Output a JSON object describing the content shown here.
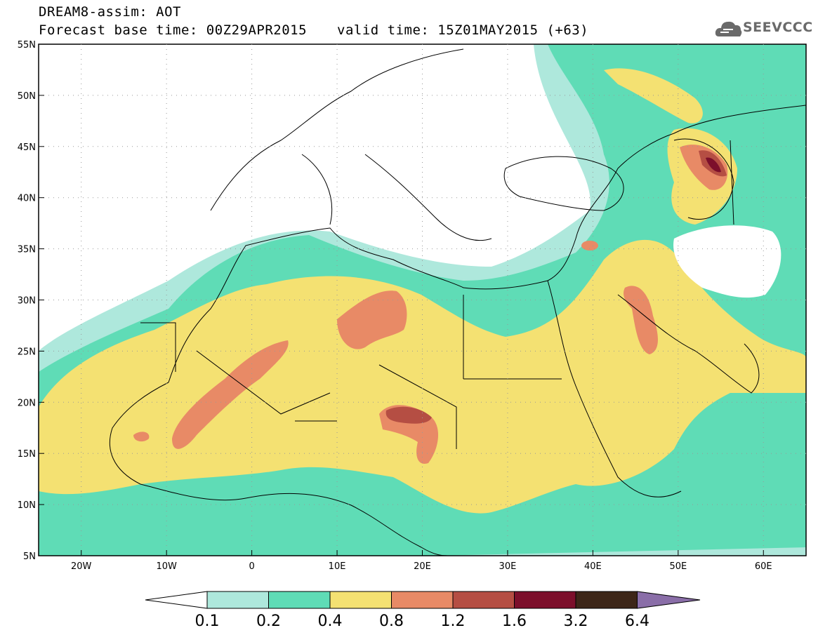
{
  "header": {
    "title": "DREAM8-assim: AOT",
    "base_time": "Forecast base time: 00Z29APR2015",
    "valid_time": "valid time: 15Z01MAY2015 (+63)",
    "logo_text": "SEEVCCC",
    "logo_icon": "cloud-icon"
  },
  "map": {
    "lat_range": [
      5,
      55
    ],
    "lon_range": [
      -25,
      65
    ],
    "lat_labels": [
      "55N",
      "50N",
      "45N",
      "40N",
      "35N",
      "30N",
      "25N",
      "20N",
      "15N",
      "10N",
      "5N"
    ],
    "lon_labels": [
      "20W",
      "10W",
      "0",
      "10E",
      "20E",
      "30E",
      "40E",
      "50E",
      "60E"
    ],
    "gridlines": "dotted"
  },
  "legend": {
    "ticks": [
      "0.1",
      "0.2",
      "0.4",
      "0.8",
      "1.2",
      "1.6",
      "3.2",
      "6.4"
    ],
    "colors": [
      "#ffffff",
      "#aee8dc",
      "#5fdcb6",
      "#f4e172",
      "#e88a66",
      "#b54e43",
      "#7c0f2b",
      "#3d2618",
      "#8a6ea8"
    ]
  }
}
